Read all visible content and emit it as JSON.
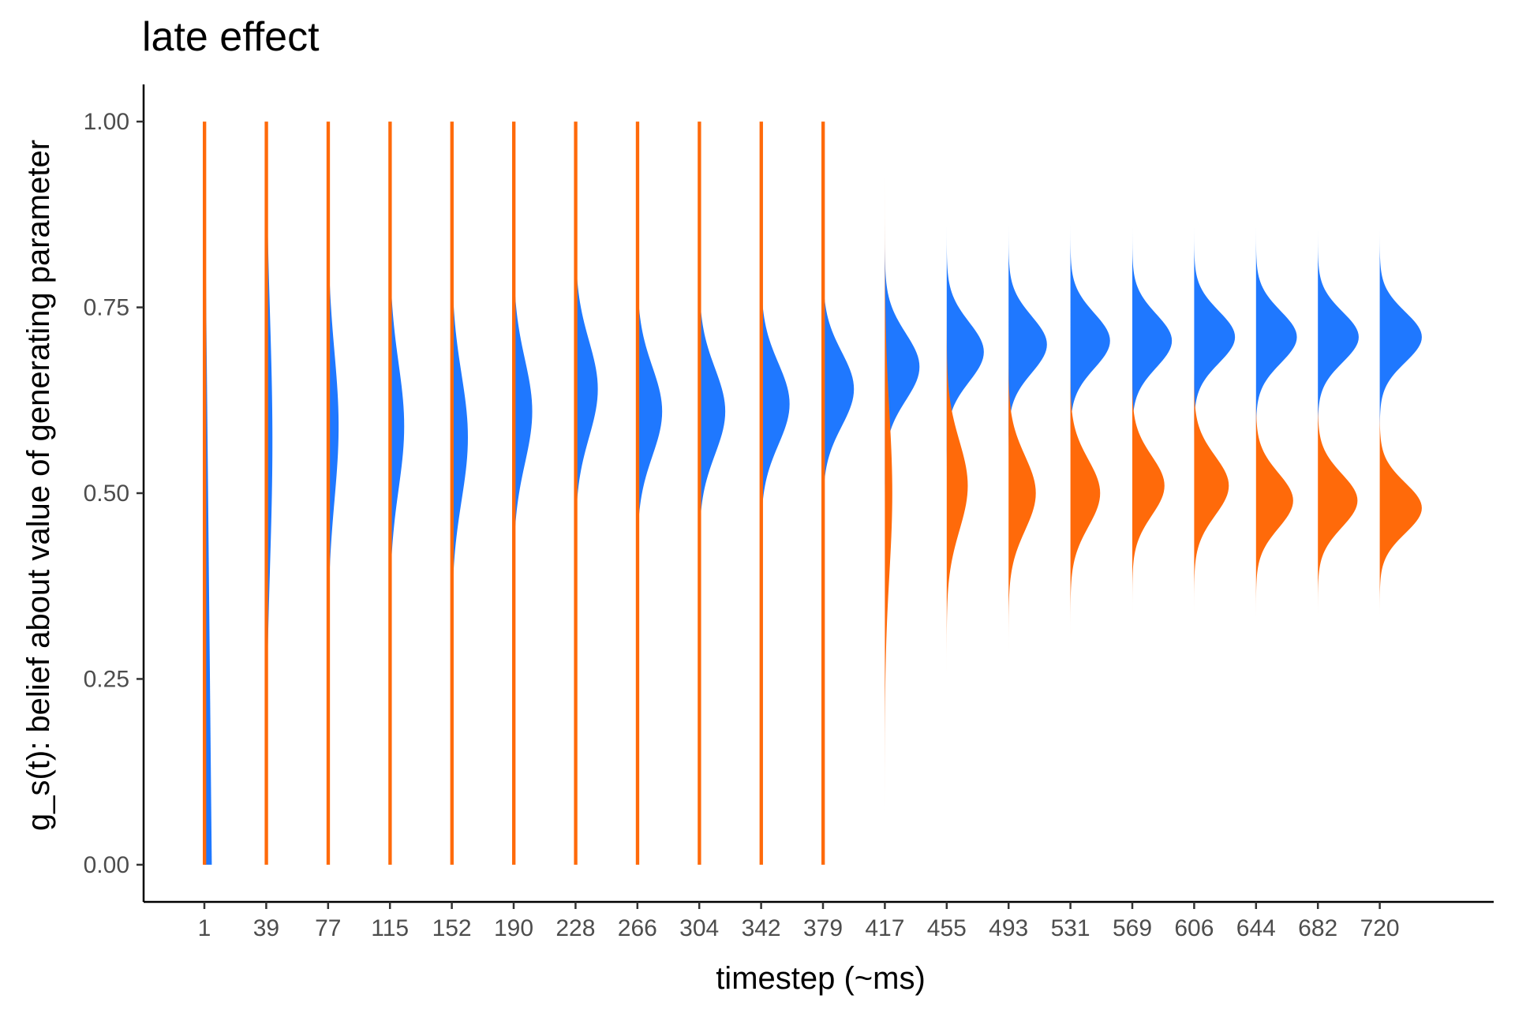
{
  "chart_data": {
    "type": "ridgeline",
    "title": "late effect",
    "xlabel": "timestep (~ms)",
    "ylabel": "g_s(t): belief about value of generating parameter",
    "ylim": [
      -0.05,
      1.05
    ],
    "yticks": [
      "0.00",
      "0.25",
      "0.50",
      "0.75",
      "1.00"
    ],
    "categories": [
      "1",
      "39",
      "77",
      "115",
      "152",
      "190",
      "228",
      "266",
      "304",
      "342",
      "379",
      "417",
      "455",
      "493",
      "531",
      "569",
      "606",
      "644",
      "682",
      "720"
    ],
    "colors": {
      "blue": "#1f78ff",
      "orange": "#ff6a0a"
    },
    "series": [
      {
        "color": "blue",
        "mean": [
          null,
          0.57,
          0.59,
          0.59,
          0.575,
          0.61,
          0.64,
          0.61,
          0.61,
          0.62,
          0.64,
          0.67,
          0.69,
          0.7,
          0.705,
          0.705,
          0.71,
          0.71,
          0.71,
          0.71
        ],
        "sd": [
          null,
          0.17,
          0.1,
          0.085,
          0.085,
          0.07,
          0.065,
          0.06,
          0.058,
          0.055,
          0.05,
          0.045,
          0.04,
          0.038,
          0.037,
          0.036,
          0.035,
          0.035,
          0.034,
          0.034
        ],
        "peak": [
          0.12,
          0.1,
          0.17,
          0.23,
          0.26,
          0.3,
          0.36,
          0.4,
          0.42,
          0.46,
          0.5,
          0.56,
          0.6,
          0.62,
          0.64,
          0.64,
          0.66,
          0.66,
          0.66,
          0.68
        ]
      },
      {
        "color": "orange",
        "mean": [
          null,
          null,
          null,
          null,
          null,
          null,
          null,
          null,
          null,
          null,
          null,
          0.5,
          0.51,
          0.5,
          0.5,
          0.51,
          0.51,
          0.49,
          0.49,
          0.48
        ],
        "sd": [
          null,
          null,
          null,
          null,
          null,
          null,
          null,
          null,
          null,
          null,
          null,
          0.11,
          0.06,
          0.05,
          0.045,
          0.04,
          0.04,
          0.037,
          0.036,
          0.034
        ],
        "peak": [
          0.03,
          0.03,
          0.03,
          0.03,
          0.03,
          0.03,
          0.03,
          0.03,
          0.03,
          0.03,
          0.03,
          0.12,
          0.34,
          0.44,
          0.48,
          0.52,
          0.56,
          0.6,
          0.64,
          0.68
        ]
      }
    ],
    "legend": "none",
    "grid": false
  }
}
